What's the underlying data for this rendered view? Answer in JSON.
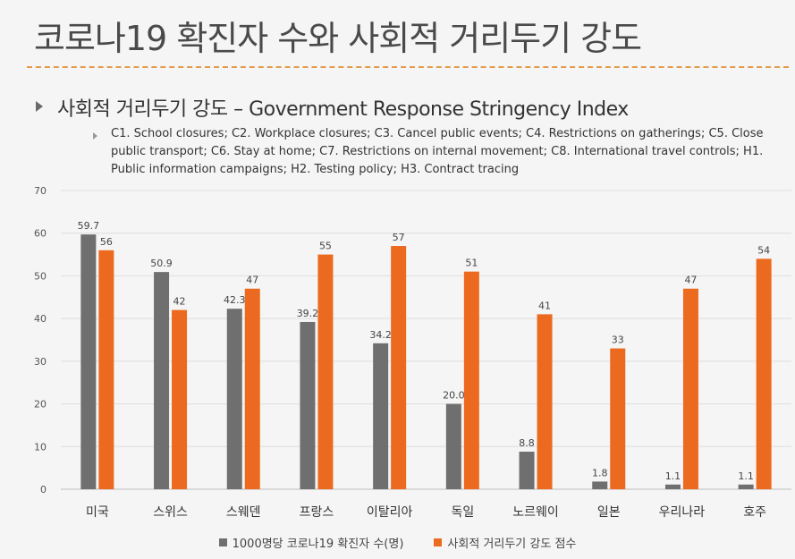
{
  "slide": {
    "title": "코로나19 확진자 수와 사회적 거리두기 강도",
    "subtitle": "사회적 거리두기 강도 – Government Response Stringency Index",
    "description": "C1. School closures; C2. Workplace closures; C3. Cancel public events; C4. Restrictions on gatherings; C5. Close public transport; C6. Stay at home; C7. Restrictions on internal movement; C8. International travel controls; H1. Public information campaigns; H2. Testing policy; H3. Contract tracing"
  },
  "chart_data": {
    "type": "bar",
    "categories": [
      "미국",
      "스위스",
      "스웨덴",
      "프랑스",
      "이탈리아",
      "독일",
      "노르웨이",
      "일본",
      "우리나라",
      "호주"
    ],
    "series": [
      {
        "name": "1000명당 코로나19 확진자 수(명)",
        "color": "#6f6f6f",
        "values": [
          59.7,
          50.9,
          42.3,
          39.2,
          34.2,
          20.0,
          8.8,
          1.8,
          1.1,
          1.1
        ],
        "labels": [
          "59.7",
          "50.9",
          "42.3",
          "39.2",
          "34.2",
          "20.0",
          "8.8",
          "1.8",
          "1.1",
          "1.1"
        ]
      },
      {
        "name": "사회적 거리두기 강도 점수",
        "color": "#ec6a1f",
        "values": [
          56,
          42,
          47,
          55,
          57,
          51,
          41,
          33,
          47,
          54
        ],
        "labels": [
          "56",
          "42",
          "47",
          "55",
          "57",
          "51",
          "41",
          "33",
          "47",
          "54"
        ]
      }
    ],
    "ylim": [
      0,
      70
    ],
    "yticks": [
      "0",
      "10",
      "20",
      "30",
      "40",
      "50",
      "60",
      "70"
    ],
    "grid": true,
    "legend": "bottom"
  }
}
